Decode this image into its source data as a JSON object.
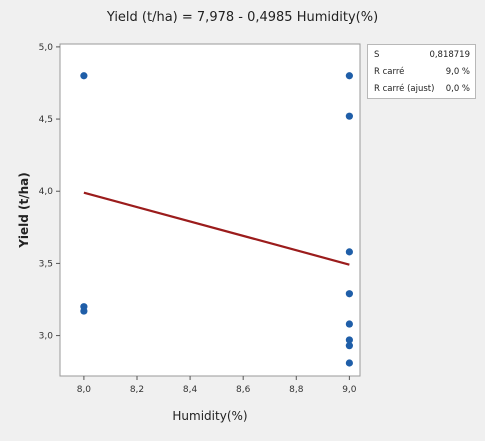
{
  "chart_data": {
    "type": "scatter",
    "title": "Yield (t/ha) = 7,978 - 0,4985 Humidity(%)",
    "xlabel": "Humidity(%)",
    "ylabel": "Yield (t/ha)",
    "xlim": [
      7.91,
      9.04
    ],
    "ylim": [
      2.72,
      5.02
    ],
    "x_ticks": [
      8.0,
      8.2,
      8.4,
      8.6,
      8.8,
      9.0
    ],
    "x_tick_labels": [
      "8,0",
      "8,2",
      "8,4",
      "8,6",
      "8,8",
      "9,0"
    ],
    "y_ticks": [
      3.0,
      3.5,
      4.0,
      4.5,
      5.0
    ],
    "y_tick_labels": [
      "3,0",
      "3,5",
      "4,0",
      "4,5",
      "5,0"
    ],
    "points": [
      {
        "x": 8.0,
        "y": 4.8
      },
      {
        "x": 8.0,
        "y": 3.2
      },
      {
        "x": 8.0,
        "y": 3.17
      },
      {
        "x": 9.0,
        "y": 4.8
      },
      {
        "x": 9.0,
        "y": 4.52
      },
      {
        "x": 9.0,
        "y": 3.58
      },
      {
        "x": 9.0,
        "y": 3.29
      },
      {
        "x": 9.0,
        "y": 3.08
      },
      {
        "x": 9.0,
        "y": 2.97
      },
      {
        "x": 9.0,
        "y": 2.93
      },
      {
        "x": 9.0,
        "y": 2.81
      }
    ],
    "fit_line": {
      "intercept": 7.978,
      "slope": -0.4985,
      "x_range": [
        8.0,
        9.0
      ]
    },
    "grid": false,
    "legend": "none",
    "colors": {
      "points": "#1f5ea8",
      "fit_line": "#9b1c1c",
      "plot_bg": "#ffffff",
      "frame_bg": "#f0f0f0"
    }
  },
  "stats": [
    {
      "label": "S",
      "value": "0,818719"
    },
    {
      "label": "R carré",
      "value": "9,0 %"
    },
    {
      "label": "R carré (ajust)",
      "value": "0,0 %"
    }
  ]
}
